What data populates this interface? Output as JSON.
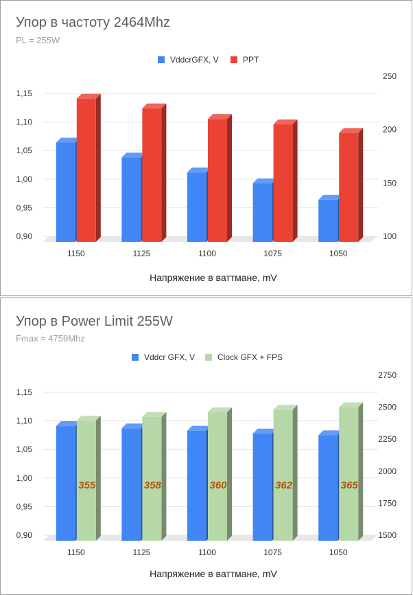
{
  "chart_data": [
    {
      "type": "bar",
      "title": "Упор в частоту 2464Mhz",
      "subtitle": "PL = 255W",
      "xlabel": "Напряжение в ваттмане, mV",
      "categories": [
        "1150",
        "1125",
        "1100",
        "1075",
        "1050"
      ],
      "legend_position": "top",
      "grid": true,
      "left_axis": {
        "ticks": [
          "0,90",
          "0,95",
          "1,00",
          "1,05",
          "1,10",
          "1,15"
        ],
        "ylim": [
          0.9,
          1.18
        ]
      },
      "right_axis": {
        "ticks": [
          "100",
          "150",
          "200",
          "250"
        ],
        "ylim": [
          100,
          250
        ]
      },
      "series": [
        {
          "name": "VddcrGFX, V",
          "axis": "left",
          "color": "#4285f4",
          "values": [
            1.064,
            1.038,
            1.012,
            0.993,
            0.964
          ]
        },
        {
          "name": "PPT",
          "axis": "right",
          "color": "#ea4335",
          "values": [
            229,
            220,
            210,
            205,
            197
          ]
        }
      ]
    },
    {
      "type": "bar",
      "title": "Упор в Power Limit 255W",
      "subtitle": "Fmax = 4759Mhz",
      "xlabel": "Напряжение в ваттмане, mV",
      "categories": [
        "1150",
        "1125",
        "1100",
        "1075",
        "1050"
      ],
      "legend_position": "top",
      "grid": true,
      "left_axis": {
        "ticks": [
          "0,90",
          "0,95",
          "1,00",
          "1,05",
          "1,10",
          "1,15"
        ],
        "ylim": [
          0.9,
          1.18
        ]
      },
      "right_axis": {
        "ticks": [
          "1500",
          "1750",
          "2000",
          "2250",
          "2500",
          "2750"
        ],
        "ylim": [
          1500,
          2750
        ]
      },
      "series": [
        {
          "name": "Vddcr GFX, V",
          "axis": "left",
          "color": "#4285f4",
          "values": [
            1.091,
            1.087,
            1.083,
            1.078,
            1.075
          ]
        },
        {
          "name": "Clock GFX + FPS",
          "axis": "right",
          "color": "#b6d7a8",
          "values": [
            2395,
            2425,
            2460,
            2480,
            2500
          ],
          "data_labels": [
            "355",
            "358",
            "360",
            "362",
            "365"
          ]
        }
      ]
    }
  ]
}
